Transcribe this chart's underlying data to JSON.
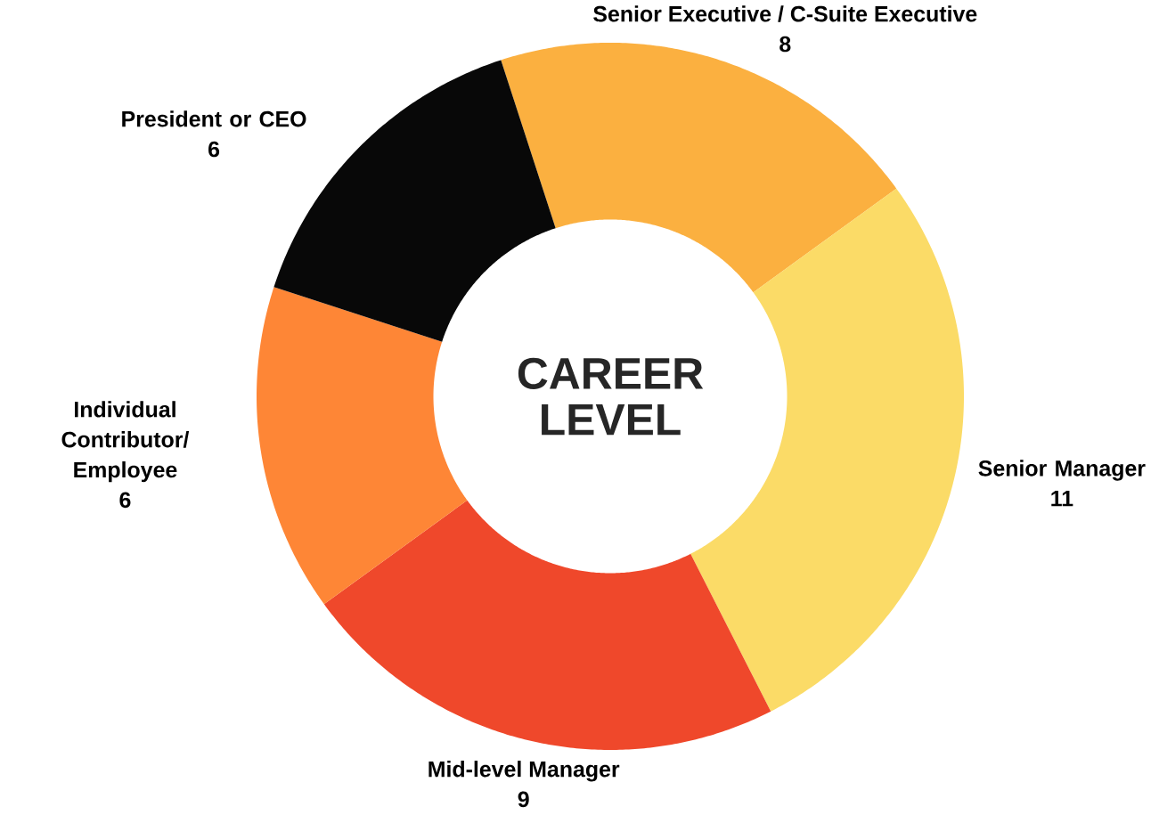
{
  "chart_data": {
    "type": "donut",
    "title": "CAREER LEVEL",
    "categories": [
      "Senior Executive / C-Suite Executive",
      "Senior Manager",
      "Mid-level Manager",
      "Individual Contributor/ Employee",
      "President or CEO"
    ],
    "values": [
      8,
      11,
      9,
      6,
      6
    ],
    "value_labels": [
      "8",
      "11",
      "9",
      "6",
      "6"
    ],
    "colors": [
      "#fbb040",
      "#fbdb67",
      "#ef482b",
      "#fe8636",
      "#080808"
    ],
    "data_labels": true
  }
}
